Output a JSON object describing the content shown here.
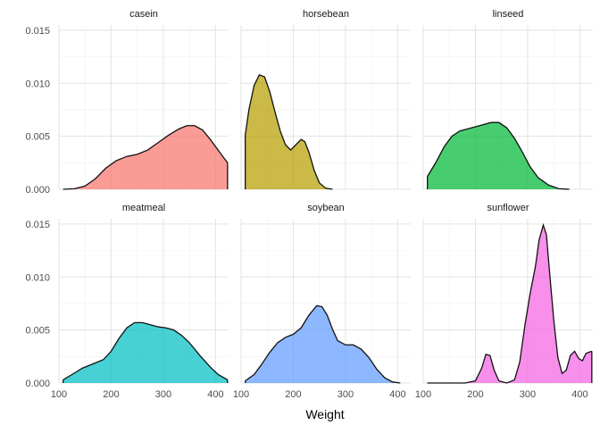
{
  "chart_data": {
    "type": "area",
    "xlabel": "Weight",
    "ylabel": "",
    "xlim": [
      100,
      425
    ],
    "ylim": [
      0,
      0.0155
    ],
    "x_ticks": [
      100,
      200,
      300,
      400
    ],
    "y_ticks": [
      0.0,
      0.005,
      0.01,
      0.015
    ],
    "y_tick_labels": [
      "0.000",
      "0.005",
      "0.010",
      "0.015"
    ],
    "grid": true,
    "legend": "none",
    "panels": [
      {
        "name": "casein",
        "color": "#F8766D",
        "points": [
          [
            108,
            0.0
          ],
          [
            130,
            5e-05
          ],
          [
            150,
            0.0003
          ],
          [
            170,
            0.001
          ],
          [
            190,
            0.002
          ],
          [
            210,
            0.0027
          ],
          [
            230,
            0.0031
          ],
          [
            250,
            0.0033
          ],
          [
            270,
            0.0037
          ],
          [
            290,
            0.0044
          ],
          [
            310,
            0.0051
          ],
          [
            330,
            0.0057
          ],
          [
            345,
            0.006
          ],
          [
            360,
            0.006
          ],
          [
            375,
            0.0056
          ],
          [
            390,
            0.0047
          ],
          [
            405,
            0.0037
          ],
          [
            423,
            0.0025
          ]
        ]
      },
      {
        "name": "horsebean",
        "color": "#B79F00",
        "points": [
          [
            108,
            0.0051
          ],
          [
            115,
            0.0075
          ],
          [
            125,
            0.0098
          ],
          [
            135,
            0.0108
          ],
          [
            145,
            0.0106
          ],
          [
            155,
            0.0092
          ],
          [
            165,
            0.0073
          ],
          [
            175,
            0.0055
          ],
          [
            185,
            0.0042
          ],
          [
            195,
            0.0037
          ],
          [
            205,
            0.0042
          ],
          [
            215,
            0.0047
          ],
          [
            222,
            0.0045
          ],
          [
            230,
            0.0035
          ],
          [
            240,
            0.0018
          ],
          [
            250,
            0.0006
          ],
          [
            262,
            0.0001
          ],
          [
            275,
            0.0
          ]
        ]
      },
      {
        "name": "linseed",
        "color": "#00BA38",
        "points": [
          [
            108,
            0.0012
          ],
          [
            125,
            0.0026
          ],
          [
            140,
            0.004
          ],
          [
            155,
            0.005
          ],
          [
            170,
            0.0055
          ],
          [
            185,
            0.0057
          ],
          [
            200,
            0.0059
          ],
          [
            215,
            0.0061
          ],
          [
            230,
            0.0063
          ],
          [
            245,
            0.0063
          ],
          [
            260,
            0.0058
          ],
          [
            275,
            0.0048
          ],
          [
            290,
            0.0035
          ],
          [
            305,
            0.0021
          ],
          [
            320,
            0.0011
          ],
          [
            340,
            0.0004
          ],
          [
            360,
            5e-05
          ],
          [
            380,
            0.0
          ]
        ]
      },
      {
        "name": "meatmeal",
        "color": "#00BFC4",
        "points": [
          [
            108,
            0.0003
          ],
          [
            125,
            0.0008
          ],
          [
            145,
            0.0014
          ],
          [
            165,
            0.0018
          ],
          [
            185,
            0.0022
          ],
          [
            200,
            0.003
          ],
          [
            215,
            0.0042
          ],
          [
            230,
            0.0052
          ],
          [
            245,
            0.0057
          ],
          [
            260,
            0.0057
          ],
          [
            275,
            0.0055
          ],
          [
            290,
            0.0053
          ],
          [
            305,
            0.0052
          ],
          [
            320,
            0.005
          ],
          [
            335,
            0.0045
          ],
          [
            350,
            0.0038
          ],
          [
            370,
            0.0026
          ],
          [
            390,
            0.0015
          ],
          [
            405,
            0.0008
          ],
          [
            423,
            0.0003
          ]
        ]
      },
      {
        "name": "soybean",
        "color": "#619CFF",
        "points": [
          [
            108,
            0.0002
          ],
          [
            125,
            0.0008
          ],
          [
            140,
            0.0018
          ],
          [
            155,
            0.0029
          ],
          [
            170,
            0.0038
          ],
          [
            185,
            0.0043
          ],
          [
            200,
            0.0046
          ],
          [
            215,
            0.0052
          ],
          [
            230,
            0.0064
          ],
          [
            245,
            0.0073
          ],
          [
            255,
            0.0072
          ],
          [
            265,
            0.0064
          ],
          [
            275,
            0.0051
          ],
          [
            285,
            0.004
          ],
          [
            300,
            0.0036
          ],
          [
            315,
            0.0036
          ],
          [
            330,
            0.0032
          ],
          [
            345,
            0.0024
          ],
          [
            360,
            0.0013
          ],
          [
            375,
            0.0005
          ],
          [
            390,
            0.0001
          ],
          [
            405,
            0.0
          ]
        ]
      },
      {
        "name": "sunflower",
        "color": "#F564E3",
        "points": [
          [
            108,
            0.0
          ],
          [
            180,
            0.0
          ],
          [
            200,
            0.0002
          ],
          [
            212,
            0.0014
          ],
          [
            220,
            0.0027
          ],
          [
            228,
            0.0026
          ],
          [
            236,
            0.0012
          ],
          [
            245,
            0.0002
          ],
          [
            260,
            0.0
          ],
          [
            275,
            0.0003
          ],
          [
            285,
            0.002
          ],
          [
            295,
            0.0055
          ],
          [
            305,
            0.0085
          ],
          [
            315,
            0.011
          ],
          [
            322,
            0.0135
          ],
          [
            330,
            0.0149
          ],
          [
            336,
            0.014
          ],
          [
            342,
            0.0105
          ],
          [
            350,
            0.006
          ],
          [
            358,
            0.0024
          ],
          [
            366,
            0.0009
          ],
          [
            374,
            0.0012
          ],
          [
            382,
            0.0026
          ],
          [
            390,
            0.003
          ],
          [
            398,
            0.0023
          ],
          [
            405,
            0.0021
          ],
          [
            412,
            0.0028
          ],
          [
            423,
            0.003
          ]
        ]
      }
    ]
  }
}
